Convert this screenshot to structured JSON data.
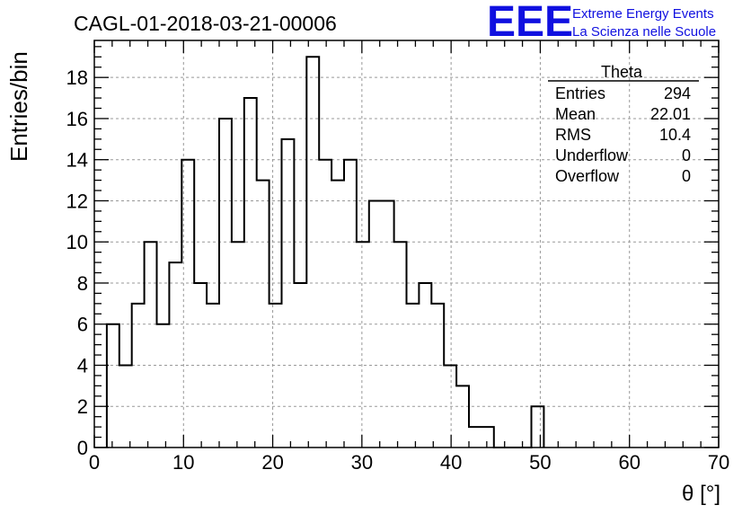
{
  "logo": {
    "text": "EEE",
    "line1": "Extreme Energy Events",
    "line2": "La Scienza nelle Scuole",
    "color": "#1010e0"
  },
  "chart_data": {
    "type": "bar",
    "histogram": true,
    "title": "CAGL-01-2018-03-21-00006",
    "xlabel": "θ [°]",
    "ylabel": "Entries/bin",
    "xlim": [
      0,
      70
    ],
    "ylim": [
      0,
      19.8
    ],
    "xticks": [
      0,
      10,
      20,
      30,
      40,
      50,
      60,
      70
    ],
    "yticks": [
      0,
      2,
      4,
      6,
      8,
      10,
      12,
      14,
      16,
      18
    ],
    "grid": true,
    "bin_width": 1.4,
    "bin_start": 1.4,
    "values": [
      6,
      4,
      7,
      10,
      6,
      9,
      14,
      8,
      7,
      16,
      10,
      17,
      13,
      7,
      15,
      8,
      19,
      14,
      13,
      14,
      10,
      12,
      12,
      10,
      7,
      8,
      7,
      4,
      3,
      1,
      1,
      0,
      0,
      0,
      2
    ],
    "stats": {
      "name": "Theta",
      "rows": [
        {
          "label": "Entries",
          "value": "294"
        },
        {
          "label": "Mean",
          "value": "22.01"
        },
        {
          "label": "RMS",
          "value": "10.4"
        },
        {
          "label": "Underflow",
          "value": "0"
        },
        {
          "label": "Overflow",
          "value": "0"
        }
      ]
    }
  }
}
